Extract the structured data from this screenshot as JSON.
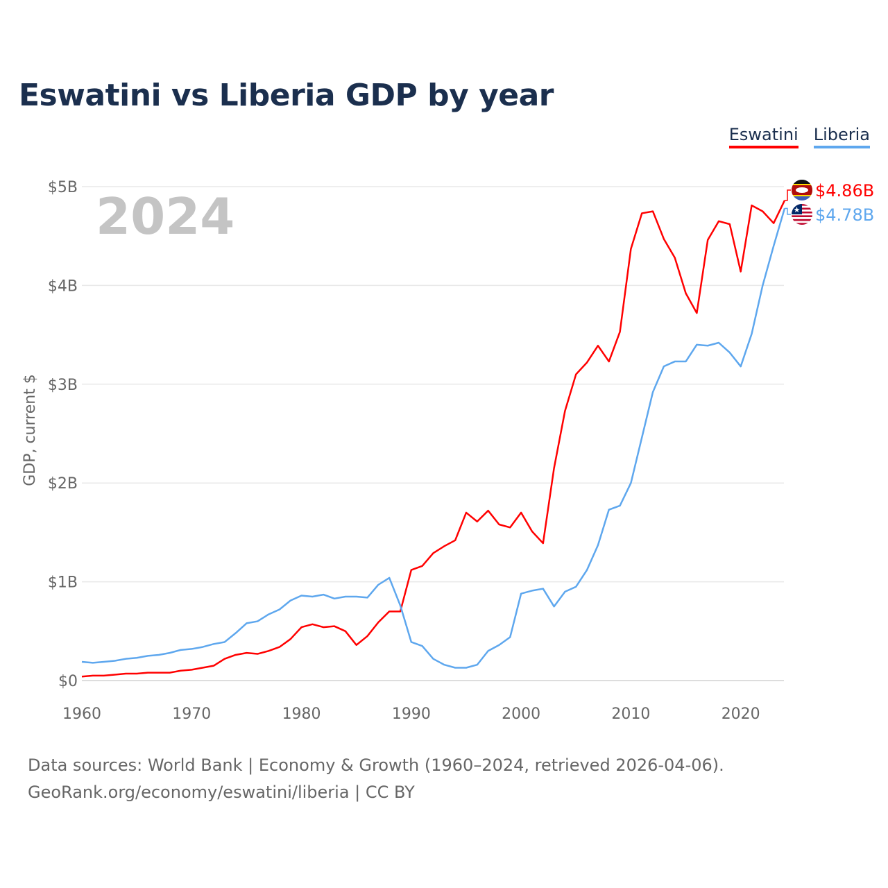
{
  "chart_data": {
    "type": "line",
    "title": "Eswatini vs Liberia GDP by year",
    "xlabel": "",
    "ylabel": "GDP, current $",
    "xlim": [
      1960,
      2024
    ],
    "ylim": [
      0,
      5
    ],
    "x_ticks": [
      1960,
      1970,
      1980,
      1990,
      2000,
      2010,
      2020
    ],
    "y_ticks": [
      0,
      1,
      2,
      3,
      4,
      5
    ],
    "y_tick_labels": [
      "$0",
      "$1B",
      "$2B",
      "$3B",
      "$4B",
      "$5B"
    ],
    "units": "billions USD",
    "grid": true,
    "legend_placement": "top-right",
    "year_label": "2024",
    "series": [
      {
        "name": "Eswatini",
        "color": "#ff0000",
        "end_label": "$4.86B",
        "values": [
          0.04,
          0.05,
          0.05,
          0.06,
          0.07,
          0.07,
          0.08,
          0.08,
          0.08,
          0.1,
          0.11,
          0.13,
          0.15,
          0.22,
          0.26,
          0.28,
          0.27,
          0.3,
          0.34,
          0.42,
          0.54,
          0.57,
          0.54,
          0.55,
          0.5,
          0.36,
          0.45,
          0.59,
          0.7,
          0.7,
          1.12,
          1.16,
          1.29,
          1.36,
          1.42,
          1.7,
          1.61,
          1.72,
          1.58,
          1.55,
          1.7,
          1.51,
          1.39,
          2.15,
          2.73,
          3.1,
          3.22,
          3.39,
          3.23,
          3.53,
          4.37,
          4.73,
          4.75,
          4.47,
          4.28,
          3.92,
          3.72,
          4.46,
          4.65,
          4.62,
          4.14,
          4.81,
          4.75,
          4.63,
          4.86
        ]
      },
      {
        "name": "Liberia",
        "color": "#5ea7ee",
        "end_label": "$4.78B",
        "values": [
          0.19,
          0.18,
          0.19,
          0.2,
          0.22,
          0.23,
          0.25,
          0.26,
          0.28,
          0.31,
          0.32,
          0.34,
          0.37,
          0.39,
          0.48,
          0.58,
          0.6,
          0.67,
          0.72,
          0.81,
          0.86,
          0.85,
          0.87,
          0.83,
          0.85,
          0.85,
          0.84,
          0.97,
          1.04,
          0.76,
          0.39,
          0.35,
          0.22,
          0.16,
          0.13,
          0.13,
          0.16,
          0.3,
          0.36,
          0.44,
          0.88,
          0.91,
          0.93,
          0.75,
          0.9,
          0.95,
          1.12,
          1.37,
          1.73,
          1.77,
          2.0,
          2.46,
          2.92,
          3.18,
          3.23,
          3.23,
          3.4,
          3.39,
          3.42,
          3.32,
          3.18,
          3.51,
          4.0,
          4.4,
          4.78
        ]
      }
    ]
  },
  "footer": {
    "line1": "Data sources: World Bank | Economy & Growth (1960–2024, retrieved 2026-04-06).",
    "line2": "GeoRank.org/economy/eswatini/liberia | CC BY"
  }
}
